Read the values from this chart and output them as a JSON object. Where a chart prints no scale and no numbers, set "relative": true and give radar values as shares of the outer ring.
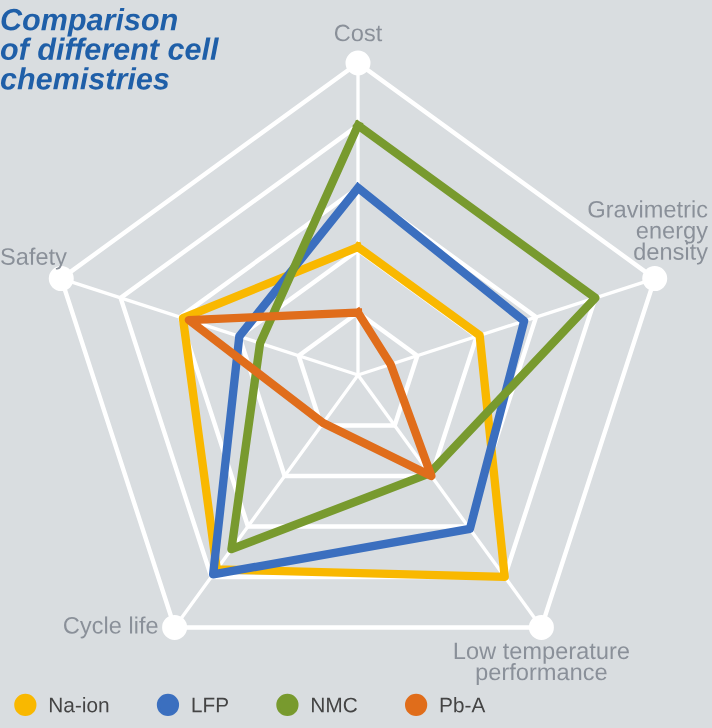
{
  "chart_data": {
    "type": "radar",
    "relative": true,
    "title": "Comparison\nof different cell\nchemistries",
    "categories": [
      "Cost",
      "Gravimetric\nenergy\ndensity",
      "Low temperature\nperformance",
      "Cycle life",
      "Safety"
    ],
    "series": [
      {
        "name": "Na-ion",
        "color": "#f9b800",
        "values": [
          0.41,
          0.41,
          0.8,
          0.77,
          0.59
        ]
      },
      {
        "name": "LFP",
        "color": "#3b6fbf",
        "values": [
          0.6,
          0.56,
          0.61,
          0.79,
          0.4
        ]
      },
      {
        "name": "NMC",
        "color": "#789a2e",
        "values": [
          0.8,
          0.8,
          0.39,
          0.69,
          0.33
        ]
      },
      {
        "name": "Pb-A",
        "color": "#e06d1b",
        "values": [
          0.2,
          0.11,
          0.4,
          0.19,
          0.57
        ]
      }
    ],
    "legend": "bottom left",
    "marker": "none",
    "line_style": "solid"
  }
}
